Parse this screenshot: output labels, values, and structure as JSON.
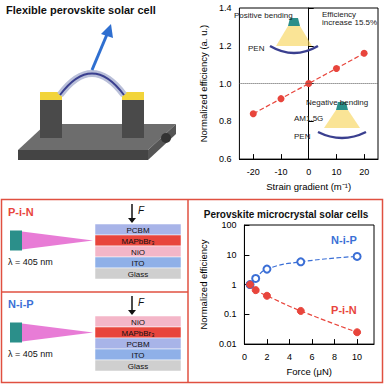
{
  "flexible_cell": {
    "title": "Flexible perovskite solar cell"
  },
  "microcrystal_devices": [
    {
      "label": "P-i-N",
      "color": "#e8453c",
      "layers": [
        "PCBM",
        "MAPbBr₃",
        "NiO",
        "ITO",
        "Glass"
      ],
      "laser": "λ = 405 nm",
      "force": "F"
    },
    {
      "label": "N-i-P",
      "color": "#3b6fd6",
      "layers": [
        "NiO",
        "MAPbBr₃",
        "PCBM",
        "ITO",
        "Glass"
      ],
      "laser": "λ = 405 nm",
      "force": "F"
    }
  ],
  "chart_data": [
    {
      "type": "line",
      "x_label": "Strain gradient (m⁻¹)",
      "y_label": "Normalized efficiency (a. u.)",
      "x": [
        -20,
        -10,
        0,
        10,
        20
      ],
      "values": [
        0.84,
        0.92,
        1.0,
        1.08,
        1.16
      ],
      "color": "#e8453c",
      "marker": "circle",
      "line_style": "dashed",
      "reference_line": 1,
      "xlim": [
        -25,
        25
      ],
      "xticks": [
        -20,
        -10,
        0,
        10,
        20
      ],
      "ylim": [
        0.6,
        1.4
      ],
      "yticks": [
        0.6,
        0.8,
        {
          "value": 1,
          "label": "1.0"
        },
        1.2,
        1.4
      ],
      "grid": false,
      "annotations": [
        "Positive bending",
        "Efficiency increase 15.5%",
        "Negative bending",
        "PEN",
        "AM1.5G",
        "PEN"
      ]
    },
    {
      "type": "line",
      "title": "Perovskite microcrystal solar cells",
      "x_label": "Force (μN)",
      "y_label": "Normalized efficiency",
      "log": "y",
      "xlim": [
        0,
        11.5
      ],
      "xticks": [
        0,
        2,
        4,
        6,
        8,
        10
      ],
      "ylim": [
        0.01,
        100
      ],
      "yticks": [
        0.01,
        0.1,
        1,
        10,
        100
      ],
      "grid": false,
      "series": [
        {
          "name": "N-i-P",
          "color": "#3b6fd6",
          "marker": "open circle",
          "line_style": "dashed",
          "x": [
            0.5,
            1,
            2,
            5,
            10
          ],
          "values": [
            1,
            1.6,
            3.3,
            5.8,
            8.8
          ]
        },
        {
          "name": "P-i-N",
          "color": "#e8453c",
          "marker": "circle",
          "line_style": "dashed",
          "x": [
            0.5,
            1,
            2,
            5,
            10
          ],
          "values": [
            1,
            0.65,
            0.42,
            0.13,
            0.025
          ]
        }
      ]
    }
  ]
}
